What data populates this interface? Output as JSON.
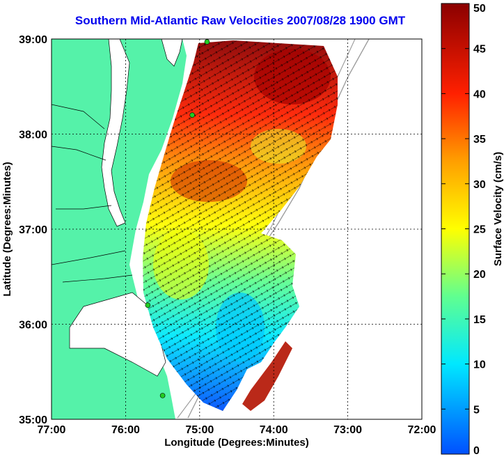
{
  "title": "Southern Mid-Atlantic Raw Velocities 2007/08/28 1900 GMT",
  "xaxis": {
    "label": "Longitude (Degrees:Minutes)",
    "ticks": [
      "77:00",
      "76:00",
      "75:00",
      "74:00",
      "73:00",
      "72:00"
    ],
    "range": [
      -77,
      -72
    ]
  },
  "yaxis": {
    "label": "Latitude (Degrees:Minutes)",
    "ticks": [
      "39:00",
      "38:00",
      "37:00",
      "36:00",
      "35:00"
    ],
    "range": [
      35,
      39
    ]
  },
  "colorbar": {
    "label": "Surface Velocity (cm/s)",
    "ticks": [
      "50",
      "45",
      "40",
      "35",
      "30",
      "25",
      "20",
      "15",
      "10",
      "5",
      "0"
    ],
    "range": [
      0,
      50
    ],
    "colormap": "jet"
  },
  "colors": {
    "land": "#55f2a9",
    "water": "#ffffff",
    "title": "#0000ee",
    "bathymetry": "#999999",
    "station": "#22cc22"
  },
  "stations": [
    {
      "lon": -74.9,
      "lat": 38.97
    },
    {
      "lon": -75.1,
      "lat": 38.2
    },
    {
      "lon": -75.7,
      "lat": 36.2
    },
    {
      "lon": -75.5,
      "lat": 35.25
    }
  ],
  "grid": "dotted",
  "vector_field": "surface current arrows"
}
